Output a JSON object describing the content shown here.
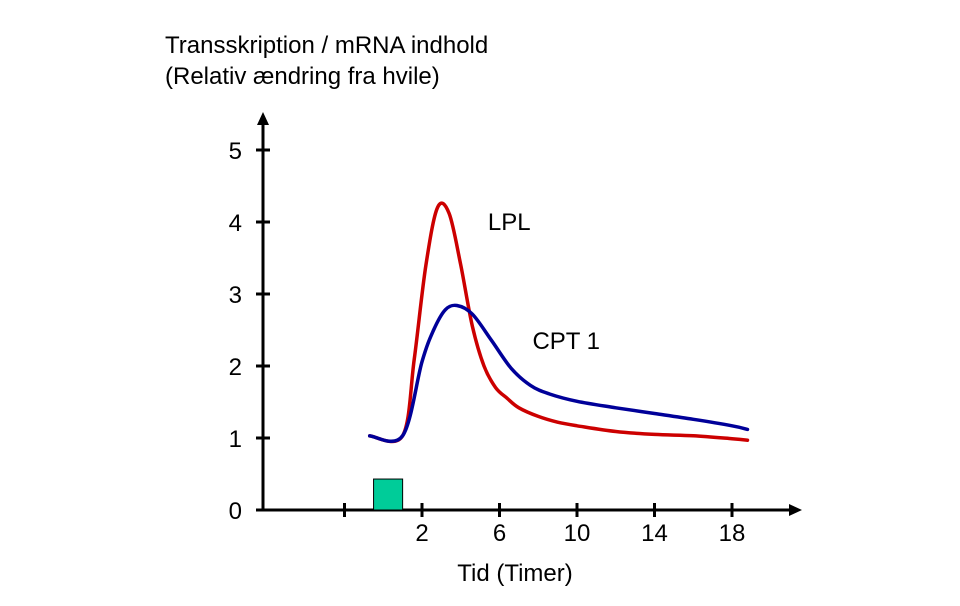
{
  "chart_data": {
    "type": "line",
    "ylabel_lines": [
      "Transskription / mRNA indhold",
      "(Relativ ændring fra hvile)"
    ],
    "xlabel": "Tid (Timer)",
    "ylim": [
      0,
      5
    ],
    "xlim": [
      -4,
      23
    ],
    "yticks": [
      0,
      1,
      2,
      3,
      4,
      5
    ],
    "ytick_labels": [
      "0",
      "1",
      "2",
      "3",
      "4",
      "5"
    ],
    "xticks": [
      -2,
      2,
      6,
      10,
      14,
      18
    ],
    "xtick_labels": [
      "",
      "2",
      "6",
      "10",
      "14",
      "18"
    ],
    "grid": false,
    "series": [
      {
        "name": "LPL",
        "color": "#cc0000",
        "x": [
          -0.7,
          1.0,
          1.6,
          2.2,
          2.8,
          3.4,
          4.0,
          4.6,
          5.2,
          5.8,
          6.4,
          7.0,
          8.0,
          9.0,
          10.0,
          12.0,
          14.0,
          16.0,
          18.0,
          18.8
        ],
        "y": [
          1.03,
          1.03,
          2.1,
          3.4,
          4.2,
          4.12,
          3.4,
          2.55,
          2.0,
          1.7,
          1.55,
          1.42,
          1.3,
          1.22,
          1.17,
          1.09,
          1.05,
          1.03,
          0.99,
          0.97
        ]
      },
      {
        "name": "CPT 1",
        "color": "#000099",
        "x": [
          -0.7,
          1.0,
          2.0,
          2.6,
          3.2,
          3.8,
          4.6,
          5.6,
          6.6,
          7.6,
          8.6,
          10.0,
          12.0,
          14.0,
          16.0,
          18.0,
          18.8
        ],
        "y": [
          1.03,
          1.03,
          2.06,
          2.5,
          2.78,
          2.84,
          2.72,
          2.35,
          1.97,
          1.73,
          1.61,
          1.51,
          1.42,
          1.34,
          1.26,
          1.17,
          1.12
        ]
      }
    ],
    "annotations": [
      {
        "text": "LPL",
        "x": 5.4,
        "y": 4.0
      },
      {
        "text": "CPT 1",
        "x": 7.7,
        "y": 2.35
      }
    ],
    "stimulus_box": {
      "x_start": -0.5,
      "x_end": 1.0,
      "y_start": 0,
      "y_end": 0.43,
      "color": "#00cc99"
    }
  }
}
